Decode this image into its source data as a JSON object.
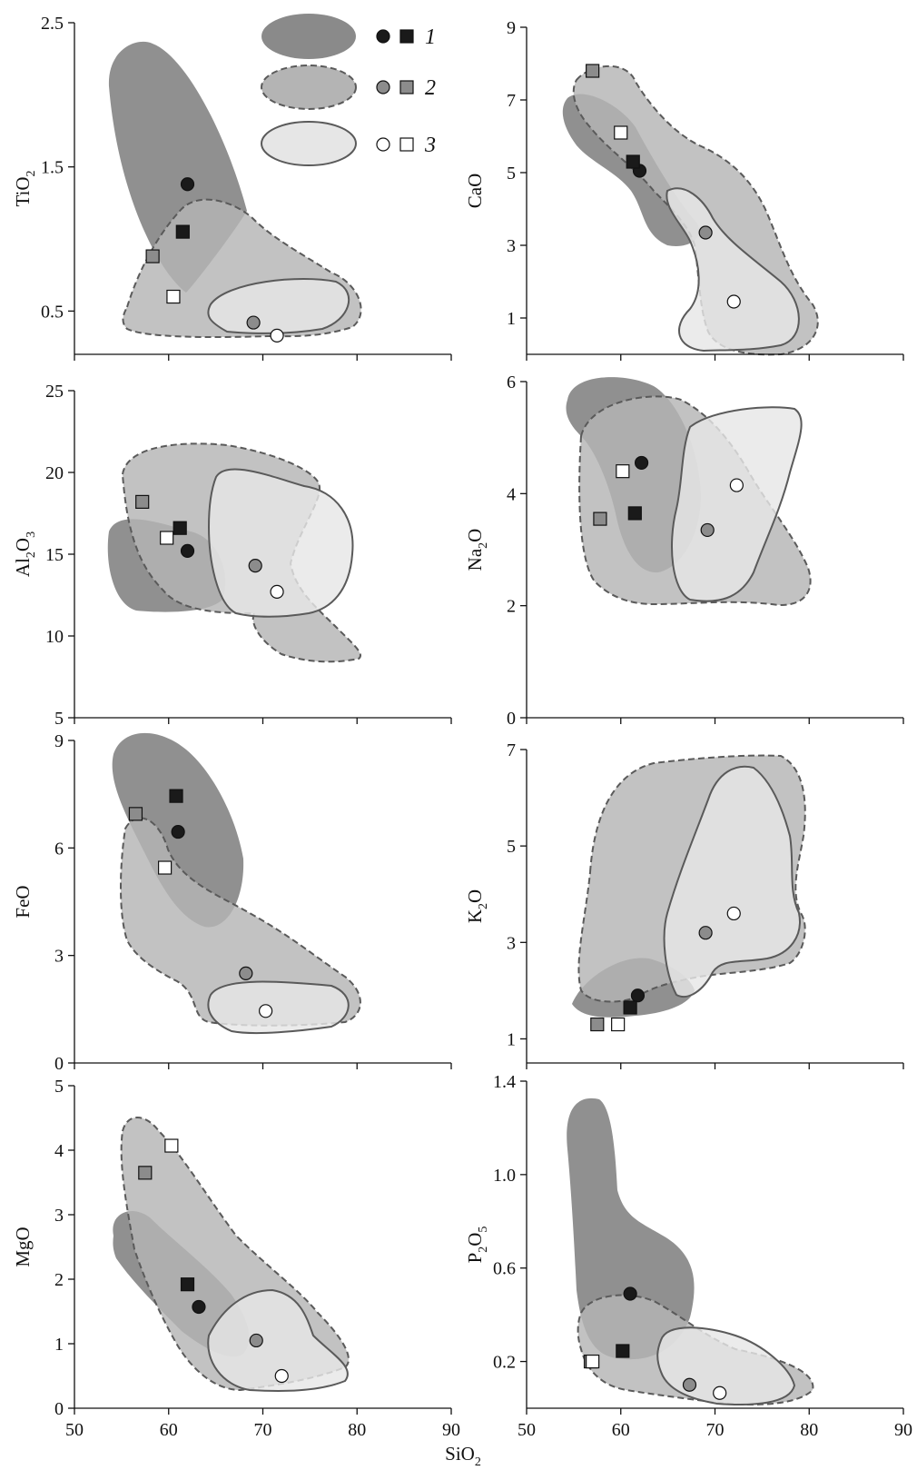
{
  "figure": {
    "xlabel_main": "SiO",
    "xlabel_sub": "2",
    "colors": {
      "field1": "#8a8a8a",
      "field2": "#b4b4b4",
      "field3": "#e6e6e6",
      "marker1": "#1a1a1a",
      "marker2": "#8c8c8c",
      "marker3": "#ffffff",
      "outline": "#5a5a5a"
    }
  },
  "legend": {
    "position": "top-left panel, upper right",
    "items": [
      {
        "label": "1",
        "fill_style": "dark, no outline"
      },
      {
        "label": "2",
        "fill_style": "medium, dashed outline"
      },
      {
        "label": "3",
        "fill_style": "light, solid outline"
      }
    ]
  },
  "chart_data": [
    {
      "type": "scatter",
      "ylabel": "TiO",
      "ylabel_sub": "2",
      "xlabel": "SiO2",
      "xlim": [
        50,
        90
      ],
      "ylim": [
        0.2,
        2.5
      ],
      "yticks": [
        0.5,
        1.5,
        2.5
      ],
      "xticks": [],
      "series": [
        {
          "name": "1",
          "points": [
            {
              "x": 62,
              "y": 1.38,
              "marker": "circle"
            },
            {
              "x": 61.5,
              "y": 1.05,
              "marker": "square"
            }
          ]
        },
        {
          "name": "2",
          "points": [
            {
              "x": 69,
              "y": 0.42,
              "marker": "circle"
            },
            {
              "x": 58.3,
              "y": 0.88,
              "marker": "square"
            }
          ]
        },
        {
          "name": "3",
          "points": [
            {
              "x": 71.5,
              "y": 0.33,
              "marker": "circle"
            },
            {
              "x": 60.5,
              "y": 0.6,
              "marker": "square"
            }
          ]
        }
      ]
    },
    {
      "type": "scatter",
      "ylabel": "CaO",
      "ylabel_sub": "",
      "xlabel": "SiO2",
      "xlim": [
        50,
        90
      ],
      "ylim": [
        0,
        9
      ],
      "yticks": [
        1,
        3,
        5,
        7,
        9
      ],
      "xticks": [],
      "series": [
        {
          "name": "1",
          "points": [
            {
              "x": 62,
              "y": 5.05,
              "marker": "circle"
            },
            {
              "x": 61.3,
              "y": 5.3,
              "marker": "square"
            }
          ]
        },
        {
          "name": "2",
          "points": [
            {
              "x": 69,
              "y": 3.35,
              "marker": "circle"
            },
            {
              "x": 57,
              "y": 7.8,
              "marker": "square"
            }
          ]
        },
        {
          "name": "3",
          "points": [
            {
              "x": 72,
              "y": 1.45,
              "marker": "circle"
            },
            {
              "x": 60,
              "y": 6.1,
              "marker": "square"
            }
          ]
        }
      ]
    },
    {
      "type": "scatter",
      "ylabel": "Al",
      "ylabel_sub": "2",
      "ylabel_mid": "O",
      "ylabel_sub2": "3",
      "xlabel": "SiO2",
      "xlim": [
        50,
        90
      ],
      "ylim": [
        5,
        25
      ],
      "yticks": [
        5,
        10,
        15,
        20,
        25
      ],
      "xticks": [],
      "series": [
        {
          "name": "1",
          "points": [
            {
              "x": 62,
              "y": 15.2,
              "marker": "circle"
            },
            {
              "x": 61.2,
              "y": 16.6,
              "marker": "square"
            }
          ]
        },
        {
          "name": "2",
          "points": [
            {
              "x": 69.2,
              "y": 14.3,
              "marker": "circle"
            },
            {
              "x": 57.2,
              "y": 18.2,
              "marker": "square"
            }
          ]
        },
        {
          "name": "3",
          "points": [
            {
              "x": 71.5,
              "y": 12.7,
              "marker": "circle"
            },
            {
              "x": 59.8,
              "y": 16,
              "marker": "square"
            }
          ]
        }
      ]
    },
    {
      "type": "scatter",
      "ylabel": "Na",
      "ylabel_sub": "2",
      "ylabel_mid": "O",
      "xlabel": "SiO2",
      "xlim": [
        50,
        90
      ],
      "ylim": [
        0,
        6
      ],
      "yticks": [
        0,
        2,
        4,
        6
      ],
      "xticks": [],
      "series": [
        {
          "name": "1",
          "points": [
            {
              "x": 62.2,
              "y": 4.55,
              "marker": "circle"
            },
            {
              "x": 61.5,
              "y": 3.65,
              "marker": "square"
            }
          ]
        },
        {
          "name": "2",
          "points": [
            {
              "x": 69.2,
              "y": 3.35,
              "marker": "circle"
            },
            {
              "x": 57.8,
              "y": 3.55,
              "marker": "square"
            }
          ]
        },
        {
          "name": "3",
          "points": [
            {
              "x": 72.3,
              "y": 4.15,
              "marker": "circle"
            },
            {
              "x": 60.2,
              "y": 4.4,
              "marker": "square"
            }
          ]
        }
      ]
    },
    {
      "type": "scatter",
      "ylabel": "FeO",
      "ylabel_sub": "",
      "xlabel": "SiO2",
      "xlim": [
        50,
        90
      ],
      "ylim": [
        0,
        9
      ],
      "yticks": [
        0,
        3,
        6,
        9
      ],
      "xticks": [],
      "series": [
        {
          "name": "1",
          "points": [
            {
              "x": 61,
              "y": 6.45,
              "marker": "circle"
            },
            {
              "x": 60.8,
              "y": 7.45,
              "marker": "square"
            }
          ]
        },
        {
          "name": "2",
          "points": [
            {
              "x": 68.2,
              "y": 2.5,
              "marker": "circle"
            },
            {
              "x": 56.5,
              "y": 6.95,
              "marker": "square"
            }
          ]
        },
        {
          "name": "3",
          "points": [
            {
              "x": 70.3,
              "y": 1.45,
              "marker": "circle"
            },
            {
              "x": 59.6,
              "y": 5.45,
              "marker": "square"
            }
          ]
        }
      ]
    },
    {
      "type": "scatter",
      "ylabel": "K",
      "ylabel_sub": "2",
      "ylabel_mid": "O",
      "xlabel": "SiO2",
      "xlim": [
        50,
        90
      ],
      "ylim": [
        0.5,
        7
      ],
      "yticks": [
        1,
        3,
        5,
        7
      ],
      "xticks": [],
      "series": [
        {
          "name": "1",
          "points": [
            {
              "x": 61.8,
              "y": 1.9,
              "marker": "circle"
            },
            {
              "x": 61,
              "y": 1.65,
              "marker": "square"
            }
          ]
        },
        {
          "name": "2",
          "points": [
            {
              "x": 69,
              "y": 3.2,
              "marker": "circle"
            },
            {
              "x": 57.5,
              "y": 1.3,
              "marker": "square"
            }
          ]
        },
        {
          "name": "3",
          "points": [
            {
              "x": 72,
              "y": 3.6,
              "marker": "circle"
            },
            {
              "x": 59.7,
              "y": 1.3,
              "marker": "square"
            }
          ]
        }
      ]
    },
    {
      "type": "scatter",
      "ylabel": "MgO",
      "ylabel_sub": "",
      "xlabel": "SiO2",
      "xlim": [
        50,
        90
      ],
      "ylim": [
        0,
        5
      ],
      "yticks": [
        0,
        1,
        2,
        3,
        4,
        5
      ],
      "xticks": [
        50,
        60,
        70,
        80,
        90
      ],
      "series": [
        {
          "name": "1",
          "points": [
            {
              "x": 63.2,
              "y": 1.57,
              "marker": "circle"
            },
            {
              "x": 62,
              "y": 1.92,
              "marker": "square"
            }
          ]
        },
        {
          "name": "2",
          "points": [
            {
              "x": 69.3,
              "y": 1.05,
              "marker": "circle"
            },
            {
              "x": 57.5,
              "y": 3.65,
              "marker": "square"
            }
          ]
        },
        {
          "name": "3",
          "points": [
            {
              "x": 72,
              "y": 0.5,
              "marker": "circle"
            },
            {
              "x": 60.3,
              "y": 4.07,
              "marker": "square"
            }
          ]
        }
      ]
    },
    {
      "type": "scatter",
      "ylabel": "P",
      "ylabel_sub": "2",
      "ylabel_mid": "O",
      "ylabel_sub2": "5",
      "xlabel": "SiO2",
      "xlim": [
        50,
        90
      ],
      "ylim": [
        0,
        1.4
      ],
      "yticks": [
        0.2,
        0.6,
        1.0,
        1.4
      ],
      "ytick_labels": [
        "0.2",
        "0.6",
        "1.0",
        "1.4"
      ],
      "xticks": [
        50,
        60,
        70,
        80,
        90
      ],
      "series": [
        {
          "name": "1",
          "points": [
            {
              "x": 61,
              "y": 0.49,
              "marker": "circle"
            },
            {
              "x": 60.2,
              "y": 0.245,
              "marker": "square"
            }
          ]
        },
        {
          "name": "2",
          "points": [
            {
              "x": 67.3,
              "y": 0.1,
              "marker": "circle"
            },
            {
              "x": 56.8,
              "y": 0.2,
              "marker": "square"
            }
          ]
        },
        {
          "name": "3",
          "points": [
            {
              "x": 70.5,
              "y": 0.065,
              "marker": "circle"
            },
            {
              "x": 57,
              "y": 0.2,
              "marker": "square"
            }
          ]
        }
      ]
    }
  ]
}
